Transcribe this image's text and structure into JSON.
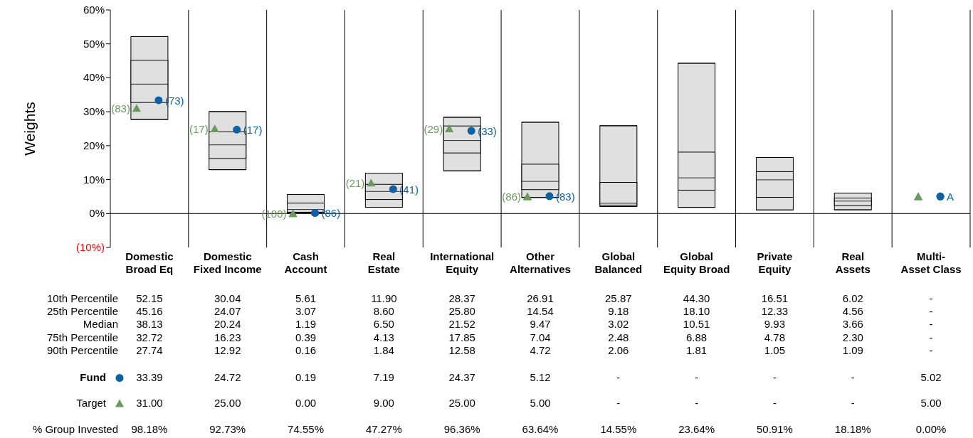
{
  "chart_data": {
    "type": "box",
    "ylabel": "Weights",
    "color": "#e0e0e0",
    "categories": [
      "Domestic Broad Eq",
      "Domestic Fixed Income",
      "Cash Account",
      "Real Estate",
      "International Equity",
      "Other Alternatives",
      "Global Balanced",
      "Global Equity Broad",
      "Private Equity",
      "Real Assets",
      "Multi-Asset Class"
    ],
    "boxes": [
      {
        "low": 27.74,
        "q1": 32.72,
        "median": 38.13,
        "q3": 45.16,
        "high": 52.15
      },
      {
        "low": 12.92,
        "q1": 16.23,
        "median": 20.24,
        "q3": 24.07,
        "high": 30.04
      },
      {
        "low": 0.16,
        "q1": 0.39,
        "median": 1.19,
        "q3": 3.07,
        "high": 5.61
      },
      {
        "low": 1.84,
        "q1": 4.13,
        "median": 6.5,
        "q3": 8.6,
        "high": 11.9
      },
      {
        "low": 12.58,
        "q1": 17.85,
        "median": 21.52,
        "q3": 25.8,
        "high": 28.37
      },
      {
        "low": 4.72,
        "q1": 7.04,
        "median": 9.47,
        "q3": 14.54,
        "high": 26.91
      },
      {
        "low": 2.06,
        "q1": 2.48,
        "median": 3.02,
        "q3": 9.18,
        "high": 25.87
      },
      {
        "low": 1.81,
        "q1": 6.88,
        "median": 10.51,
        "q3": 18.1,
        "high": 44.3
      },
      {
        "low": 1.05,
        "q1": 4.78,
        "median": 9.93,
        "q3": 12.33,
        "high": 16.51
      },
      {
        "low": 1.09,
        "q1": 2.3,
        "median": 3.66,
        "q3": 4.56,
        "high": 6.02
      },
      null
    ],
    "series": [
      {
        "name": "Fund",
        "type": "scatter",
        "marker": "circle",
        "color": "#0b62a4",
        "values": [
          33.39,
          24.72,
          0.19,
          7.19,
          24.37,
          5.12,
          null,
          null,
          null,
          null,
          5.02
        ]
      },
      {
        "name": "Target",
        "type": "scatter",
        "marker": "triangle",
        "color": "#6a9a5e",
        "values": [
          31.0,
          25.0,
          0.0,
          9.0,
          25.0,
          5.0,
          null,
          null,
          null,
          null,
          5.0
        ]
      }
    ],
    "ylim": [
      -10,
      60
    ],
    "yticks": [
      {
        "value": -10,
        "label": "(10%)"
      },
      {
        "value": 0,
        "label": "0%"
      },
      {
        "value": 10,
        "label": "10%"
      },
      {
        "value": 20,
        "label": "20%"
      },
      {
        "value": 30,
        "label": "30%"
      },
      {
        "value": 40,
        "label": "40%"
      },
      {
        "value": 50,
        "label": "50%"
      },
      {
        "value": 60,
        "label": "60%"
      }
    ],
    "ref_lines": [
      {
        "axis": "y",
        "value": 0,
        "color": "#000000"
      }
    ],
    "grid": "x",
    "legend": "bottom left",
    "annotations": [
      "10th Percentile",
      "52.15",
      "30.04",
      "5.61",
      "11.90",
      "28.37",
      "26.91",
      "25.87",
      "44.30",
      "16.51",
      "6.02",
      "-",
      "25th Percentile",
      "45.16",
      "24.07",
      "3.07",
      "8.60",
      "25.80",
      "14.54",
      "9.18",
      "18.10",
      "12.33",
      "4.56",
      "-",
      "Median",
      "38.13",
      "20.24",
      "1.19",
      "6.50",
      "21.52",
      "9.47",
      "3.02",
      "10.51",
      "9.93",
      "3.66",
      "-",
      "75th Percentile",
      "32.72",
      "16.23",
      "0.39",
      "4.13",
      "17.85",
      "7.04",
      "2.48",
      "6.88",
      "4.78",
      "2.30",
      "-",
      "90th Percentile",
      "27.74",
      "12.92",
      "0.16",
      "1.84",
      "12.58",
      "4.72",
      "2.06",
      "1.81",
      "1.05",
      "1.09",
      "-",
      "33.39",
      "24.72",
      "0.19",
      "7.19",
      "24.37",
      "5.12",
      "-",
      "-",
      "-",
      "-",
      "5.02",
      "31.00",
      "25.00",
      "0.00",
      "9.00",
      "25.00",
      "5.00",
      "-",
      "-",
      "-",
      "-",
      "5.00",
      "% Group Invested",
      "98.18%",
      "92.73%",
      "74.55%",
      "47.27%",
      "96.36%",
      "63.64%",
      "14.55%",
      "23.64%",
      "50.91%",
      "18.18%",
      "0.00%",
      "(73)",
      "(17)",
      "(86)",
      "(41)",
      "(33)",
      "(83)",
      "A",
      "(83)",
      "(17)",
      "(100)",
      "(21)",
      "(29)",
      "(86)"
    ]
  }
}
